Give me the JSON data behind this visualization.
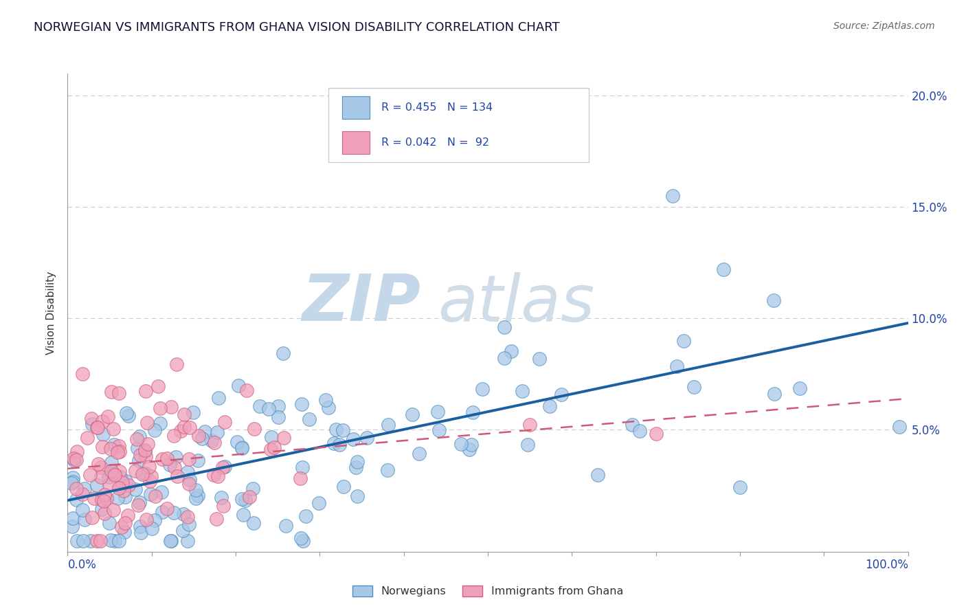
{
  "title": "NORWEGIAN VS IMMIGRANTS FROM GHANA VISION DISABILITY CORRELATION CHART",
  "source": "Source: ZipAtlas.com",
  "ylabel": "Vision Disability",
  "legend_label1": "Norwegians",
  "legend_label2": "Immigrants from Ghana",
  "color_blue_fill": "#a8c8e8",
  "color_blue_edge": "#5090c0",
  "color_pink_fill": "#f0a0b8",
  "color_pink_edge": "#d06080",
  "color_blue_line": "#1a60a0",
  "color_pink_line": "#d05878",
  "watermark_color": "#dde8f0",
  "R1": 0.455,
  "N1": 134,
  "R2": 0.042,
  "N2": 92,
  "xlim": [
    0.0,
    1.0
  ],
  "ylim": [
    -0.005,
    0.21
  ],
  "yticks": [
    0.0,
    0.05,
    0.1,
    0.15,
    0.2
  ],
  "ytick_labels": [
    "",
    "5.0%",
    "10.0%",
    "15.0%",
    "20.0%"
  ],
  "grid_color": "#cccccc",
  "title_color": "#111133",
  "source_color": "#666666",
  "axis_color": "#999999",
  "label_color": "#2244aa"
}
